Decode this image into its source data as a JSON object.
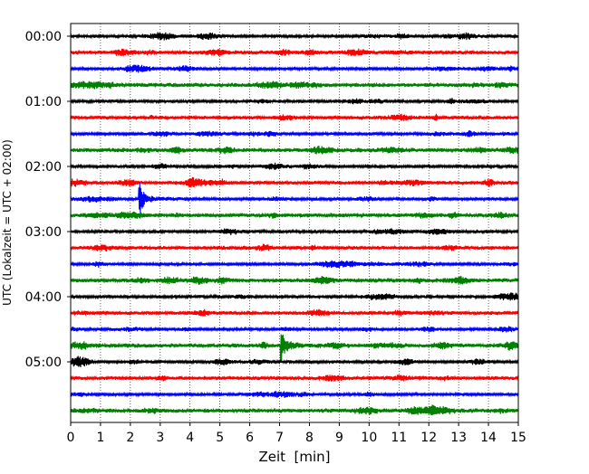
{
  "chart_data": {
    "type": "line",
    "title": "",
    "xlabel": "Zeit  [min]",
    "ylabel": "UTC (Lokalzeit = UTC + 02:00)",
    "xlim": [
      0,
      15
    ],
    "x_ticks": [
      0,
      1,
      2,
      3,
      4,
      5,
      6,
      7,
      8,
      9,
      10,
      11,
      12,
      13,
      14,
      15
    ],
    "x_tick_labels": [
      "0",
      "1",
      "2",
      "3",
      "4",
      "5",
      "6",
      "7",
      "8",
      "9",
      "10",
      "11",
      "12",
      "13",
      "14",
      "15"
    ],
    "y_tick_labels": [
      "00:00",
      "01:00",
      "02:00",
      "03:00",
      "04:00",
      "05:00"
    ],
    "trace_interval_min": 15,
    "grid": "vertical dotted",
    "trace_colors": [
      "#000000",
      "#ff0000",
      "#0000ff",
      "#008000"
    ],
    "traces": [
      {
        "start": "00:00",
        "color": "#000000"
      },
      {
        "start": "00:15",
        "color": "#ff0000"
      },
      {
        "start": "00:30",
        "color": "#0000ff"
      },
      {
        "start": "00:45",
        "color": "#008000"
      },
      {
        "start": "01:00",
        "color": "#000000"
      },
      {
        "start": "01:15",
        "color": "#ff0000"
      },
      {
        "start": "01:30",
        "color": "#0000ff"
      },
      {
        "start": "01:45",
        "color": "#008000"
      },
      {
        "start": "02:00",
        "color": "#000000"
      },
      {
        "start": "02:15",
        "color": "#ff0000"
      },
      {
        "start": "02:30",
        "color": "#0000ff"
      },
      {
        "start": "02:45",
        "color": "#008000"
      },
      {
        "start": "03:00",
        "color": "#000000"
      },
      {
        "start": "03:15",
        "color": "#ff0000"
      },
      {
        "start": "03:30",
        "color": "#0000ff"
      },
      {
        "start": "03:45",
        "color": "#008000"
      },
      {
        "start": "04:00",
        "color": "#000000"
      },
      {
        "start": "04:15",
        "color": "#ff0000"
      },
      {
        "start": "04:30",
        "color": "#0000ff"
      },
      {
        "start": "04:45",
        "color": "#008000"
      },
      {
        "start": "05:00",
        "color": "#000000"
      },
      {
        "start": "05:15",
        "color": "#ff0000"
      },
      {
        "start": "05:30",
        "color": "#0000ff"
      },
      {
        "start": "05:45",
        "color": "#008000"
      }
    ],
    "events": [
      {
        "trace": "02:30",
        "time_min": 2.3,
        "amplitude": "large"
      },
      {
        "trace": "04:45",
        "time_min": 7.05,
        "amplitude": "large"
      }
    ]
  }
}
